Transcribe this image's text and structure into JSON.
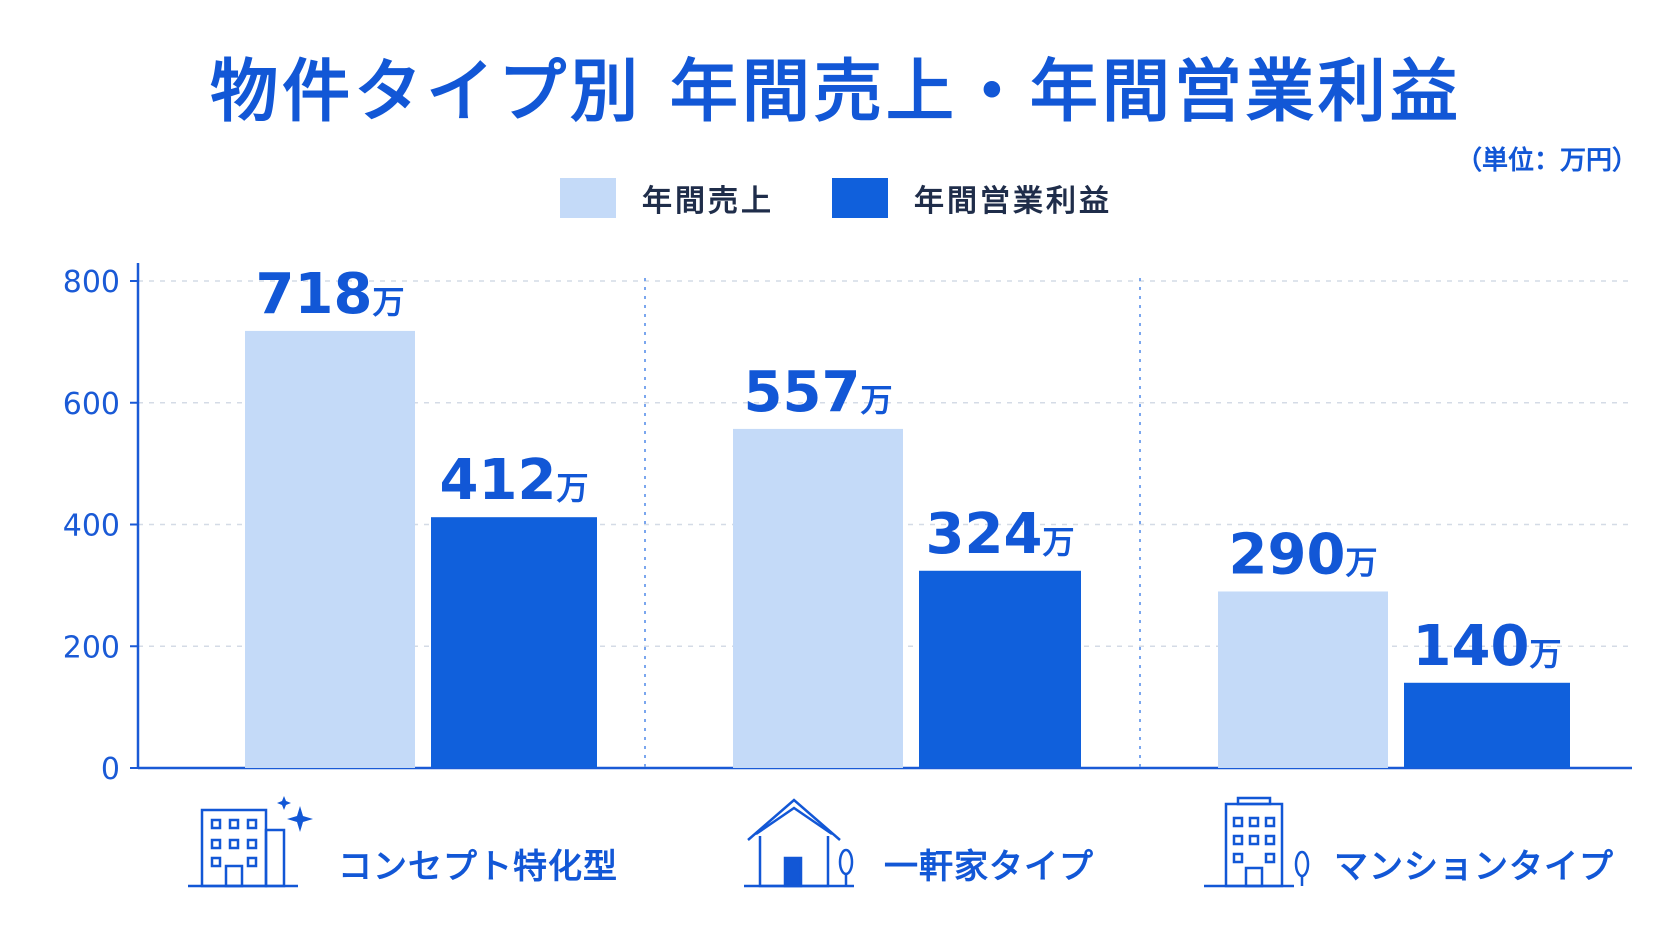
{
  "title": "物件タイプ別 年間売上・年間営業利益",
  "unit_note": "（単位：万円）",
  "colors": {
    "sales": "#c4daf8",
    "profit": "#1060dc",
    "accent": "#1257d6",
    "axis": "#1a5ad6",
    "grid": "#d4dbe6",
    "separator": "#7aa6ee"
  },
  "legend": [
    {
      "label": "年間売上",
      "color_key": "sales"
    },
    {
      "label": "年間営業利益",
      "color_key": "profit"
    }
  ],
  "chart_data": {
    "type": "bar",
    "categories": [
      "コンセプト特化型",
      "一軒家タイプ",
      "マンションタイプ"
    ],
    "category_icons": [
      "office-building-sparkle-icon",
      "house-icon",
      "apartment-building-icon"
    ],
    "series": [
      {
        "name": "年間売上",
        "values": [
          718,
          557,
          290
        ]
      },
      {
        "name": "年間営業利益",
        "values": [
          412,
          324,
          140
        ]
      }
    ],
    "value_labels": {
      "年間売上": [
        "718",
        "557",
        "290"
      ],
      "年間営業利益": [
        "412",
        "324",
        "140"
      ]
    },
    "value_suffix": "万",
    "yticks": [
      "0",
      "200",
      "400",
      "600",
      "800"
    ],
    "ylim": [
      0,
      800
    ],
    "grid": true,
    "legend_position": "top"
  }
}
